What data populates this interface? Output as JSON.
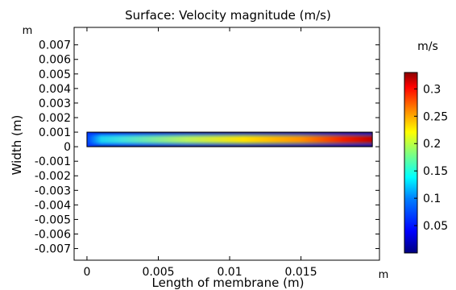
{
  "chart_data": {
    "type": "heatmap",
    "title": "Surface: Velocity magnitude (m/s)",
    "xlabel": "Length of membrane (m)",
    "ylabel": "Width (m)",
    "x_unit": "m",
    "y_unit": "m",
    "xlim": [
      -0.0009,
      0.0205
    ],
    "ylim": [
      -0.0078,
      0.0082
    ],
    "x_ticks": [
      0,
      0.005,
      0.01,
      0.015
    ],
    "x_tick_labels": [
      "0",
      "0.005",
      "0.01",
      "0.015"
    ],
    "y_ticks": [
      0.007,
      0.006,
      0.005,
      0.004,
      0.003,
      0.002,
      0.001,
      0,
      -0.001,
      -0.002,
      -0.003,
      -0.004,
      -0.005,
      -0.006,
      -0.007
    ],
    "y_tick_labels": [
      "0.007",
      "0.006",
      "0.005",
      "0.004",
      "0.003",
      "0.002",
      "0.001",
      "0",
      "-0.001",
      "-0.002",
      "-0.003",
      "-0.004",
      "-0.005",
      "-0.006",
      "-0.007"
    ],
    "domain": {
      "x": [
        0,
        0.02
      ],
      "y": [
        0,
        0.001
      ]
    },
    "field": {
      "description": "Velocity magnitude along channel",
      "x_samples": [
        0,
        0.002,
        0.005,
        0.008,
        0.01,
        0.013,
        0.015,
        0.018,
        0.02
      ],
      "centerline_values": [
        0.12,
        0.15,
        0.18,
        0.2,
        0.22,
        0.25,
        0.28,
        0.31,
        0.33
      ]
    },
    "colorbar": {
      "unit_label": "m/s",
      "range": [
        0,
        0.33
      ],
      "ticks": [
        0.05,
        0.1,
        0.15,
        0.2,
        0.25,
        0.3
      ],
      "tick_labels": [
        "0.05",
        "0.1",
        "0.15",
        "0.2",
        "0.25",
        "0.3"
      ],
      "colormap": [
        "#00007f",
        "#0000ff",
        "#007fff",
        "#00ffff",
        "#7fff7f",
        "#ffff00",
        "#ff7f00",
        "#ff0000",
        "#7f0000"
      ]
    },
    "grid": false
  }
}
